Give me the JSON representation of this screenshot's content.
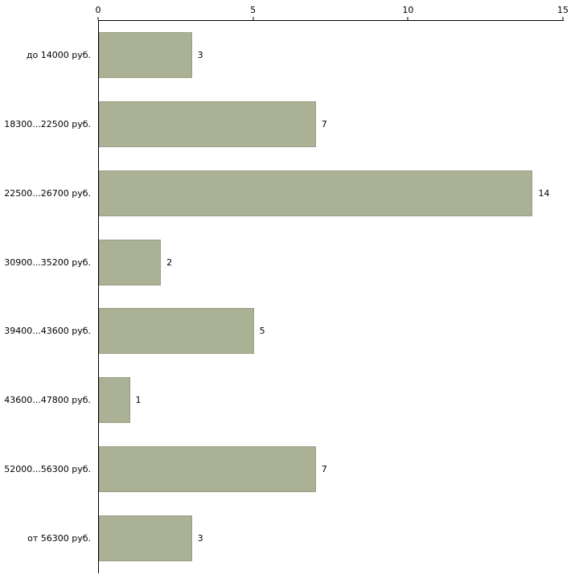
{
  "chart_data": {
    "type": "bar",
    "orientation": "horizontal",
    "title": "",
    "xlabel": "",
    "ylabel": "",
    "categories": [
      "до 14000 руб.",
      "18300...22500 руб.",
      "22500...26700 руб.",
      "30900...35200 руб.",
      "39400...43600 руб.",
      "43600...47800 руб.",
      "52000...56300 руб.",
      "от 56300 руб."
    ],
    "values": [
      3,
      7,
      14,
      2,
      5,
      1,
      7,
      3
    ],
    "xlim": [
      0,
      15
    ],
    "x_ticks": [
      0,
      5,
      10,
      15
    ],
    "x_axis_position": "top",
    "grid": false,
    "legend": "none",
    "value_labels": true
  },
  "colors": {
    "bar_fill": "#abb194",
    "bar_border": "#999f82",
    "axis": "#000000",
    "text": "#000000",
    "background": "#ffffff"
  }
}
